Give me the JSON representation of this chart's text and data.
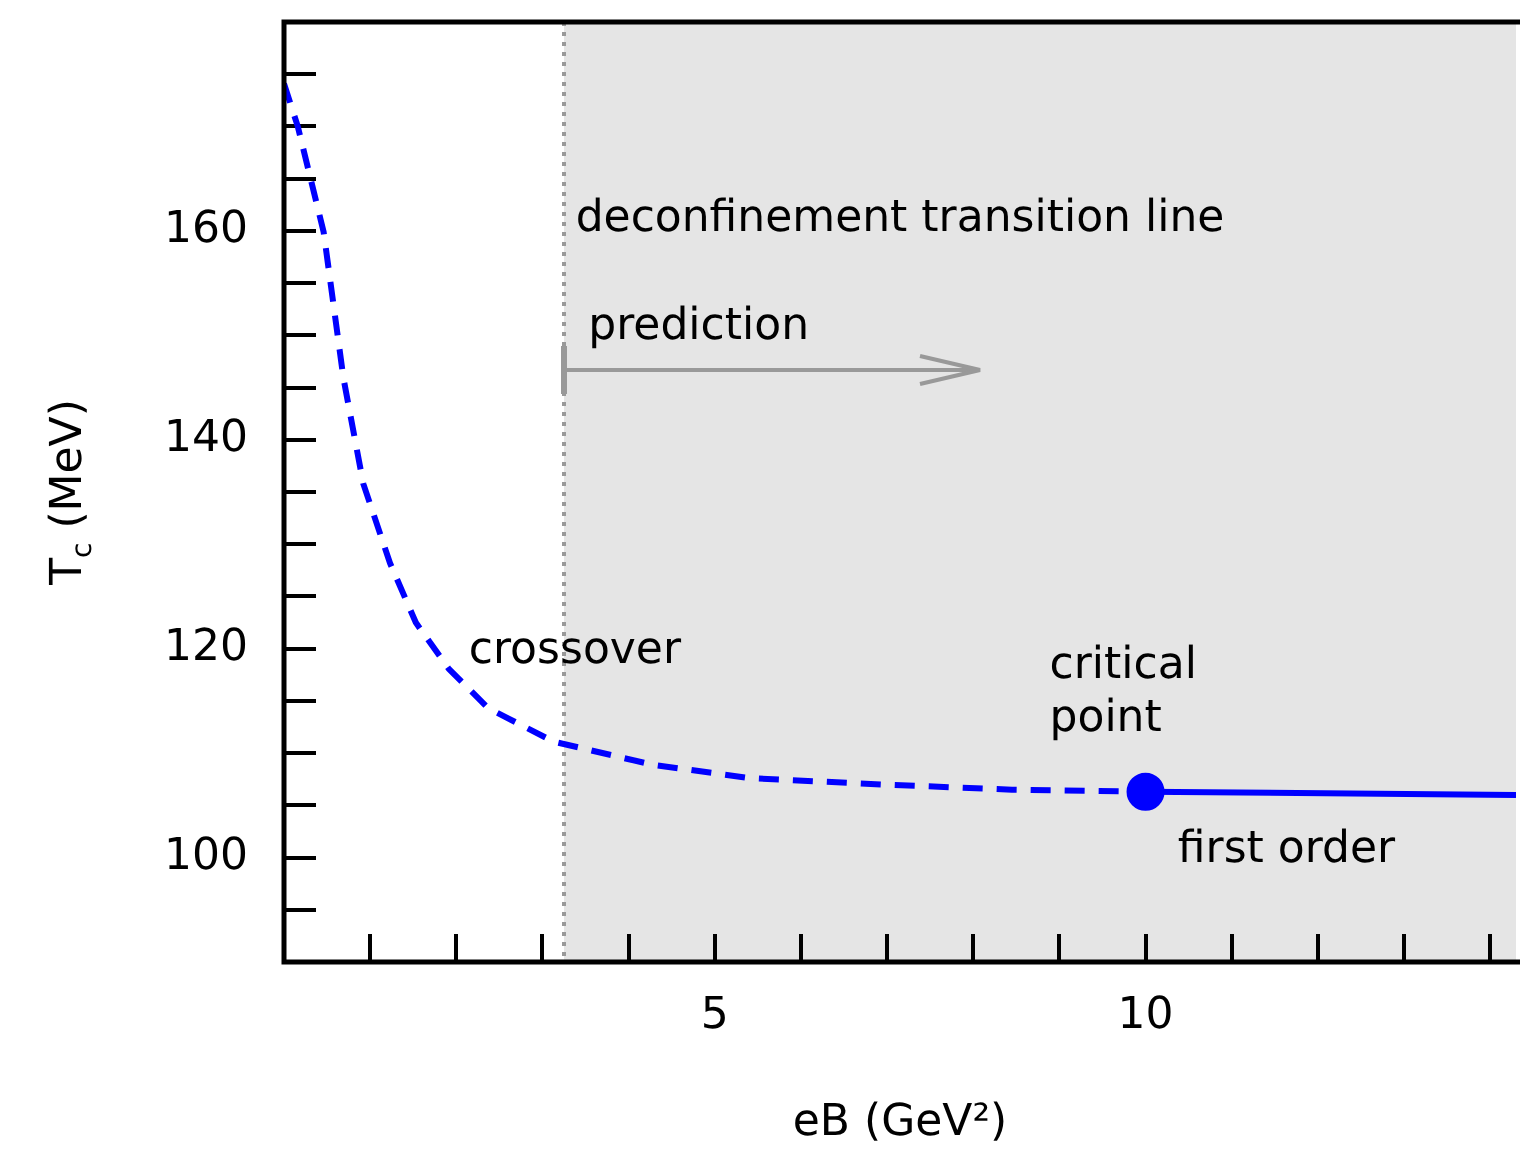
{
  "chart_data": {
    "type": "line",
    "xlabel": "eB (GeV²)",
    "ylabel": "T$_{c}$ (MeV)",
    "xlim": [
      0,
      14.3
    ],
    "ylim": [
      90,
      180
    ],
    "xticks": [
      {
        "value": 1,
        "label": null
      },
      {
        "value": 2,
        "label": null
      },
      {
        "value": 3,
        "label": null
      },
      {
        "value": 4,
        "label": null
      },
      5,
      {
        "value": 6,
        "label": null
      },
      {
        "value": 7,
        "label": null
      },
      {
        "value": 8,
        "label": null
      },
      {
        "value": 9,
        "label": null
      },
      10,
      {
        "value": 11,
        "label": null
      },
      {
        "value": 12,
        "label": null
      },
      {
        "value": 13,
        "label": null
      },
      {
        "value": 14,
        "label": null
      }
    ],
    "yticks": [
      {
        "value": 95,
        "label": null
      },
      100,
      {
        "value": 105,
        "label": null
      },
      {
        "value": 110,
        "label": null
      },
      {
        "value": 115,
        "label": null
      },
      120,
      {
        "value": 125,
        "label": null
      },
      {
        "value": 130,
        "label": null
      },
      {
        "value": 135,
        "label": null
      },
      140,
      {
        "value": 145,
        "label": null
      },
      {
        "value": 150,
        "label": null
      },
      {
        "value": 155,
        "label": null
      },
      160,
      {
        "value": 165,
        "label": null
      },
      {
        "value": 170,
        "label": null
      },
      {
        "value": 175,
        "label": null
      }
    ],
    "grid": false,
    "legend": false,
    "series": [
      {
        "color": "#0000ff",
        "line_style": "dashed",
        "marker": "none",
        "x": [
          0,
          0.16,
          0.46,
          0.69,
          0.92,
          1.23,
          1.53,
          1.91,
          2.37,
          3.13,
          4.27,
          5.41,
          6.93,
          8.45,
          10
        ],
        "values": [
          174.1,
          170,
          159.9,
          145.9,
          135.8,
          128.2,
          122.5,
          118.1,
          114.3,
          111.1,
          108.9,
          107.6,
          107,
          106.5,
          106.3
        ]
      },
      {
        "color": "#0000ff",
        "line_style": "solid",
        "marker": "none",
        "x": [
          10,
          14.3
        ],
        "values": [
          106.3,
          106.0
        ]
      },
      {
        "type": "scatter",
        "color": "#0000ff",
        "marker": "circle",
        "x": [
          10
        ],
        "values": [
          106.3
        ]
      }
    ],
    "bands": [
      {
        "axis": "x",
        "from": 3.25,
        "to": 14.3,
        "color": "#e5e5e5"
      }
    ],
    "ref_lines": [
      {
        "axis": "x",
        "value": 3.25,
        "color": "#999999",
        "line_style": "dotted"
      }
    ],
    "annotations": [
      "deconfinement transition line",
      "prediction",
      "crossover",
      {
        "text": "critical\npoint",
        "x": 10,
        "y": 106.3
      },
      {
        "text": "first order",
        "x": 12,
        "y": 106
      }
    ]
  }
}
